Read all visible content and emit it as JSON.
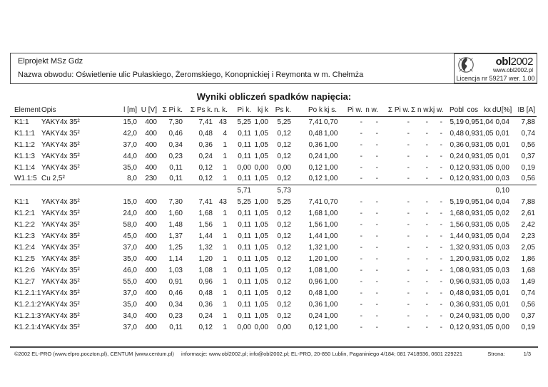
{
  "header": {
    "company": "Elprojekt MSz Gdz",
    "circuit": "Nazwa obwodu: Oświetlenie ulic Pułaskiego, Żeromskiego, Konopnickiej i Reymonta w m. Chełmża",
    "logo": {
      "icon": "globe-swirl-icon",
      "name_bold": "obl",
      "name_rest": "2002",
      "url": "www.obl2002.pl",
      "license": "Licencja nr 59217 wer. 1.00"
    }
  },
  "title": "Wyniki obliczeń spadków napięcia:",
  "table": {
    "columns": [
      "Element",
      "Opis",
      "l [m]",
      "U [V]",
      "Σ Pi k.",
      "Σ Ps k.",
      "n. k.",
      "Pi k.",
      "kj k",
      "Ps k.",
      "Po k",
      "kj s.",
      "Pi w.",
      "n w.",
      "Σ Pi w.",
      "Σ n w.",
      "kj w.",
      "Pobl",
      "cos",
      "kx",
      "dU[%]",
      "IB [A]"
    ],
    "rows": [
      {
        "type": "data",
        "cells": [
          "K1:1",
          "YAKY4x 35²",
          "15,0",
          "400",
          "7,30",
          "7,41",
          "43",
          "5,25",
          "1,00",
          "5,25",
          "7,41",
          "0,70",
          "-",
          "-",
          "-",
          "-",
          "-",
          "5,19",
          "0,95",
          "1,04",
          "0,04",
          "7,88"
        ]
      },
      {
        "type": "data",
        "cells": [
          "K1.1:1",
          "YAKY4x 35²",
          "42,0",
          "400",
          "0,46",
          "0,48",
          "4",
          "0,11",
          "1,05",
          "0,12",
          "0,48",
          "1,00",
          "-",
          "-",
          "-",
          "-",
          "-",
          "0,48",
          "0,93",
          "1,05",
          "0,01",
          "0,74"
        ]
      },
      {
        "type": "data",
        "cells": [
          "K1.1:2",
          "YAKY4x 35²",
          "37,0",
          "400",
          "0,34",
          "0,36",
          "1",
          "0,11",
          "1,05",
          "0,12",
          "0,36",
          "1,00",
          "-",
          "-",
          "-",
          "-",
          "-",
          "0,36",
          "0,93",
          "1,05",
          "0,01",
          "0,56"
        ]
      },
      {
        "type": "data",
        "cells": [
          "K1.1:3",
          "YAKY4x 35²",
          "44,0",
          "400",
          "0,23",
          "0,24",
          "1",
          "0,11",
          "1,05",
          "0,12",
          "0,24",
          "1,00",
          "-",
          "-",
          "-",
          "-",
          "-",
          "0,24",
          "0,93",
          "1,05",
          "0,01",
          "0,37"
        ]
      },
      {
        "type": "data",
        "cells": [
          "K1.1:4",
          "YAKY4x 35²",
          "35,0",
          "400",
          "0,11",
          "0,12",
          "1",
          "0,00",
          "0,00",
          "0,00",
          "0,12",
          "1,00",
          "-",
          "-",
          "-",
          "-",
          "-",
          "0,12",
          "0,93",
          "1,05",
          "0,00",
          "0,19"
        ]
      },
      {
        "type": "data",
        "cells": [
          "W1.1:5",
          "Cu 2,5²",
          "8,0",
          "230",
          "0,11",
          "0,12",
          "1",
          "0,11",
          "1,05",
          "0,12",
          "0,12",
          "1,00",
          "-",
          "-",
          "-",
          "-",
          "-",
          "0,12",
          "0,93",
          "1,00",
          "0,03",
          "0,56"
        ]
      },
      {
        "type": "subtotal",
        "cells": [
          "",
          "",
          "",
          "",
          "",
          "",
          "",
          "5,71",
          "",
          "5,73",
          "",
          "",
          "",
          "",
          "",
          "",
          "",
          "",
          "",
          "",
          "0,10",
          ""
        ]
      },
      {
        "type": "data",
        "cells": [
          "K1:1",
          "YAKY4x 35²",
          "15,0",
          "400",
          "7,30",
          "7,41",
          "43",
          "5,25",
          "1,00",
          "5,25",
          "7,41",
          "0,70",
          "-",
          "-",
          "-",
          "-",
          "-",
          "5,19",
          "0,95",
          "1,04",
          "0,04",
          "7,88"
        ]
      },
      {
        "type": "data",
        "cells": [
          "K1.2:1",
          "YAKY4x 35²",
          "24,0",
          "400",
          "1,60",
          "1,68",
          "1",
          "0,11",
          "1,05",
          "0,12",
          "1,68",
          "1,00",
          "-",
          "-",
          "-",
          "-",
          "-",
          "1,68",
          "0,93",
          "1,05",
          "0,02",
          "2,61"
        ]
      },
      {
        "type": "data",
        "cells": [
          "K1.2:2",
          "YAKY4x 35²",
          "58,0",
          "400",
          "1,48",
          "1,56",
          "1",
          "0,11",
          "1,05",
          "0,12",
          "1,56",
          "1,00",
          "-",
          "-",
          "-",
          "-",
          "-",
          "1,56",
          "0,93",
          "1,05",
          "0,05",
          "2,42"
        ]
      },
      {
        "type": "data",
        "cells": [
          "K1.2:3",
          "YAKY4x 35²",
          "45,0",
          "400",
          "1,37",
          "1,44",
          "1",
          "0,11",
          "1,05",
          "0,12",
          "1,44",
          "1,00",
          "-",
          "-",
          "-",
          "-",
          "-",
          "1,44",
          "0,93",
          "1,05",
          "0,04",
          "2,23"
        ]
      },
      {
        "type": "data",
        "cells": [
          "K1.2:4",
          "YAKY4x 35²",
          "37,0",
          "400",
          "1,25",
          "1,32",
          "1",
          "0,11",
          "1,05",
          "0,12",
          "1,32",
          "1,00",
          "-",
          "-",
          "-",
          "-",
          "-",
          "1,32",
          "0,93",
          "1,05",
          "0,03",
          "2,05"
        ]
      },
      {
        "type": "data",
        "cells": [
          "K1.2:5",
          "YAKY4x 35²",
          "35,0",
          "400",
          "1,14",
          "1,20",
          "1",
          "0,11",
          "1,05",
          "0,12",
          "1,20",
          "1,00",
          "-",
          "-",
          "-",
          "-",
          "-",
          "1,20",
          "0,93",
          "1,05",
          "0,02",
          "1,86"
        ]
      },
      {
        "type": "data",
        "cells": [
          "K1.2:6",
          "YAKY4x 35²",
          "46,0",
          "400",
          "1,03",
          "1,08",
          "1",
          "0,11",
          "1,05",
          "0,12",
          "1,08",
          "1,00",
          "-",
          "-",
          "-",
          "-",
          "-",
          "1,08",
          "0,93",
          "1,05",
          "0,03",
          "1,68"
        ]
      },
      {
        "type": "data",
        "cells": [
          "K1.2:7",
          "YAKY4x 35²",
          "55,0",
          "400",
          "0,91",
          "0,96",
          "1",
          "0,11",
          "1,05",
          "0,12",
          "0,96",
          "1,00",
          "-",
          "-",
          "-",
          "-",
          "-",
          "0,96",
          "0,93",
          "1,05",
          "0,03",
          "1,49"
        ]
      },
      {
        "type": "data",
        "cells": [
          "K1.2.1:1",
          "YAKY4x 35²",
          "37,0",
          "400",
          "0,46",
          "0,48",
          "1",
          "0,11",
          "1,05",
          "0,12",
          "0,48",
          "1,00",
          "-",
          "-",
          "-",
          "-",
          "-",
          "0,48",
          "0,93",
          "1,05",
          "0,01",
          "0,74"
        ]
      },
      {
        "type": "data",
        "cells": [
          "K1.2.1:2",
          "YAKY4x 35²",
          "35,0",
          "400",
          "0,34",
          "0,36",
          "1",
          "0,11",
          "1,05",
          "0,12",
          "0,36",
          "1,00",
          "-",
          "-",
          "-",
          "-",
          "-",
          "0,36",
          "0,93",
          "1,05",
          "0,01",
          "0,56"
        ]
      },
      {
        "type": "data",
        "cells": [
          "K1.2.1:3",
          "YAKY4x 35²",
          "34,0",
          "400",
          "0,23",
          "0,24",
          "1",
          "0,11",
          "1,05",
          "0,12",
          "0,24",
          "1,00",
          "-",
          "-",
          "-",
          "-",
          "-",
          "0,24",
          "0,93",
          "1,05",
          "0,00",
          "0,37"
        ]
      },
      {
        "type": "data",
        "cells": [
          "K1.2.1:4",
          "YAKY4x 35²",
          "37,0",
          "400",
          "0,11",
          "0,12",
          "1",
          "0,00",
          "0,00",
          "0,00",
          "0,12",
          "1,00",
          "-",
          "-",
          "-",
          "-",
          "-",
          "0,12",
          "0,93",
          "1,05",
          "0,00",
          "0,19"
        ]
      }
    ]
  },
  "footer": {
    "copyright": "©2002 EL-PRO (www.elpro.poczton.pl), CENTUM (www.centum.pl)",
    "info": "informacje: www.obl2002.pl; info@obl2002.pl; EL-PRO, 20-850 Lublin, Paganiniego 4/184; 081 7418936, 0601 229221",
    "page_label": "Strona:",
    "page_value": "1/3"
  }
}
